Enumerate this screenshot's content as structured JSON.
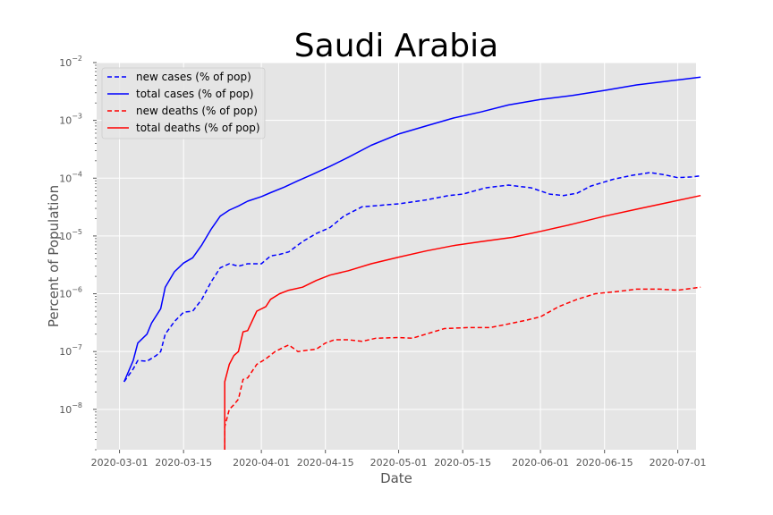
{
  "chart_data": {
    "type": "line",
    "title": "Saudi Arabia",
    "xlabel": "Date",
    "ylabel": "Percent of Population",
    "y_scale": "log",
    "ylim": [
      2e-09,
      0.01
    ],
    "xlim": [
      "2020-02-25",
      "2020-07-05"
    ],
    "grid": true,
    "legend_position": "top-left",
    "x_ticks": [
      "2020-03-01",
      "2020-03-15",
      "2020-04-01",
      "2020-04-15",
      "2020-05-01",
      "2020-05-15",
      "2020-06-01",
      "2020-06-15",
      "2020-07-01"
    ],
    "y_ticks": [
      {
        "value": 1e-08,
        "label": "10",
        "exp": "−8"
      },
      {
        "value": 1e-07,
        "label": "10",
        "exp": "−7"
      },
      {
        "value": 1e-06,
        "label": "10",
        "exp": "−6"
      },
      {
        "value": 1e-05,
        "label": "10",
        "exp": "−5"
      },
      {
        "value": 0.0001,
        "label": "10",
        "exp": "−4"
      },
      {
        "value": 0.001,
        "label": "10",
        "exp": "−3"
      },
      {
        "value": 0.01,
        "label": "10",
        "exp": "−2"
      }
    ],
    "series": [
      {
        "name": "new cases (% of pop)",
        "color": "#0000ff",
        "dash": "dashed",
        "points": [
          [
            "2020-03-02",
            3e-08
          ],
          [
            "2020-03-04",
            5e-08
          ],
          [
            "2020-03-05",
            7e-08
          ],
          [
            "2020-03-07",
            6.8e-08
          ],
          [
            "2020-03-09",
            8.5e-08
          ],
          [
            "2020-03-10",
            1e-07
          ],
          [
            "2020-03-11",
            2e-07
          ],
          [
            "2020-03-13",
            3.3e-07
          ],
          [
            "2020-03-15",
            4.8e-07
          ],
          [
            "2020-03-17",
            5e-07
          ],
          [
            "2020-03-19",
            8e-07
          ],
          [
            "2020-03-21",
            1.6e-06
          ],
          [
            "2020-03-23",
            2.8e-06
          ],
          [
            "2020-03-25",
            3.3e-06
          ],
          [
            "2020-03-27",
            3e-06
          ],
          [
            "2020-03-29",
            3.3e-06
          ],
          [
            "2020-04-01",
            3.3e-06
          ],
          [
            "2020-04-03",
            4.5e-06
          ],
          [
            "2020-04-05",
            4.8e-06
          ],
          [
            "2020-04-07",
            5.3e-06
          ],
          [
            "2020-04-10",
            8e-06
          ],
          [
            "2020-04-13",
            1.1e-05
          ],
          [
            "2020-04-16",
            1.4e-05
          ],
          [
            "2020-04-19",
            2.2e-05
          ],
          [
            "2020-04-23",
            3.2e-05
          ],
          [
            "2020-05-01",
            3.6e-05
          ],
          [
            "2020-05-07",
            4.2e-05
          ],
          [
            "2020-05-12",
            5e-05
          ],
          [
            "2020-05-15",
            5.3e-05
          ],
          [
            "2020-05-20",
            6.8e-05
          ],
          [
            "2020-05-25",
            7.6e-05
          ],
          [
            "2020-05-30",
            6.8e-05
          ],
          [
            "2020-06-03",
            5.3e-05
          ],
          [
            "2020-06-06",
            5e-05
          ],
          [
            "2020-06-09",
            5.5e-05
          ],
          [
            "2020-06-12",
            7.3e-05
          ],
          [
            "2020-06-17",
            9.6e-05
          ],
          [
            "2020-06-21",
            0.000112
          ],
          [
            "2020-06-25",
            0.000125
          ],
          [
            "2020-06-28",
            0.000115
          ],
          [
            "2020-07-01",
            0.000102
          ],
          [
            "2020-07-04",
            0.000105
          ],
          [
            "2020-07-06",
            0.00011
          ]
        ]
      },
      {
        "name": "total cases (% of pop)",
        "color": "#0000ff",
        "dash": "solid",
        "points": [
          [
            "2020-03-02",
            3e-08
          ],
          [
            "2020-03-04",
            7e-08
          ],
          [
            "2020-03-05",
            1.4e-07
          ],
          [
            "2020-03-07",
            2e-07
          ],
          [
            "2020-03-08",
            3.1e-07
          ],
          [
            "2020-03-10",
            5.5e-07
          ],
          [
            "2020-03-11",
            1.3e-06
          ],
          [
            "2020-03-13",
            2.4e-06
          ],
          [
            "2020-03-15",
            3.4e-06
          ],
          [
            "2020-03-17",
            4.2e-06
          ],
          [
            "2020-03-19",
            7e-06
          ],
          [
            "2020-03-21",
            1.3e-05
          ],
          [
            "2020-03-23",
            2.2e-05
          ],
          [
            "2020-03-25",
            2.8e-05
          ],
          [
            "2020-03-27",
            3.3e-05
          ],
          [
            "2020-03-29",
            4e-05
          ],
          [
            "2020-04-01",
            4.8e-05
          ],
          [
            "2020-04-03",
            5.6e-05
          ],
          [
            "2020-04-06",
            7e-05
          ],
          [
            "2020-04-09",
            9e-05
          ],
          [
            "2020-04-12",
            0.000115
          ],
          [
            "2020-04-16",
            0.00016
          ],
          [
            "2020-04-20",
            0.00023
          ],
          [
            "2020-04-25",
            0.00037
          ],
          [
            "2020-05-01",
            0.00058
          ],
          [
            "2020-05-07",
            0.0008
          ],
          [
            "2020-05-13",
            0.0011
          ],
          [
            "2020-05-19",
            0.0014
          ],
          [
            "2020-05-25",
            0.00185
          ],
          [
            "2020-06-01",
            0.0023
          ],
          [
            "2020-06-08",
            0.0027
          ],
          [
            "2020-06-15",
            0.0033
          ],
          [
            "2020-06-22",
            0.0041
          ],
          [
            "2020-06-29",
            0.0048
          ],
          [
            "2020-07-06",
            0.0056
          ]
        ]
      },
      {
        "name": "new deaths (% of pop)",
        "color": "#ff0000",
        "dash": "dashed",
        "points": [
          [
            "2020-03-24",
            2e-09
          ],
          [
            "2020-03-24",
            5e-09
          ],
          [
            "2020-03-25",
            1e-08
          ],
          [
            "2020-03-26",
            1.2e-08
          ],
          [
            "2020-03-27",
            1.5e-08
          ],
          [
            "2020-03-28",
            3.3e-08
          ],
          [
            "2020-03-29",
            3.5e-08
          ],
          [
            "2020-03-31",
            6e-08
          ],
          [
            "2020-04-02",
            7.5e-08
          ],
          [
            "2020-04-04",
            1e-07
          ],
          [
            "2020-04-06",
            1.2e-07
          ],
          [
            "2020-04-07",
            1.3e-07
          ],
          [
            "2020-04-09",
            1e-07
          ],
          [
            "2020-04-11",
            1.05e-07
          ],
          [
            "2020-04-13",
            1.1e-07
          ],
          [
            "2020-04-15",
            1.4e-07
          ],
          [
            "2020-04-17",
            1.6e-07
          ],
          [
            "2020-04-20",
            1.6e-07
          ],
          [
            "2020-04-23",
            1.5e-07
          ],
          [
            "2020-04-26",
            1.7e-07
          ],
          [
            "2020-05-01",
            1.75e-07
          ],
          [
            "2020-05-04",
            1.7e-07
          ],
          [
            "2020-05-07",
            2e-07
          ],
          [
            "2020-05-11",
            2.5e-07
          ],
          [
            "2020-05-16",
            2.6e-07
          ],
          [
            "2020-05-21",
            2.6e-07
          ],
          [
            "2020-05-25",
            3e-07
          ],
          [
            "2020-05-29",
            3.5e-07
          ],
          [
            "2020-06-01",
            4e-07
          ],
          [
            "2020-06-05",
            6e-07
          ],
          [
            "2020-06-09",
            8e-07
          ],
          [
            "2020-06-13",
            1e-06
          ],
          [
            "2020-06-18",
            1.1e-06
          ],
          [
            "2020-06-22",
            1.2e-06
          ],
          [
            "2020-06-27",
            1.2e-06
          ],
          [
            "2020-07-01",
            1.15e-06
          ],
          [
            "2020-07-06",
            1.3e-06
          ]
        ]
      },
      {
        "name": "total deaths (% of pop)",
        "color": "#ff0000",
        "dash": "solid",
        "points": [
          [
            "2020-03-24",
            2e-09
          ],
          [
            "2020-03-24",
            3e-08
          ],
          [
            "2020-03-25",
            6e-08
          ],
          [
            "2020-03-26",
            8.5e-08
          ],
          [
            "2020-03-27",
            1e-07
          ],
          [
            "2020-03-28",
            2.2e-07
          ],
          [
            "2020-03-29",
            2.3e-07
          ],
          [
            "2020-03-31",
            5e-07
          ],
          [
            "2020-04-02",
            6e-07
          ],
          [
            "2020-04-03",
            8e-07
          ],
          [
            "2020-04-05",
            1e-06
          ],
          [
            "2020-04-07",
            1.15e-06
          ],
          [
            "2020-04-10",
            1.3e-06
          ],
          [
            "2020-04-13",
            1.7e-06
          ],
          [
            "2020-04-16",
            2.1e-06
          ],
          [
            "2020-04-20",
            2.5e-06
          ],
          [
            "2020-04-25",
            3.3e-06
          ],
          [
            "2020-05-01",
            4.3e-06
          ],
          [
            "2020-05-07",
            5.5e-06
          ],
          [
            "2020-05-13",
            6.8e-06
          ],
          [
            "2020-05-19",
            8e-06
          ],
          [
            "2020-05-26",
            9.5e-06
          ],
          [
            "2020-06-01",
            1.2e-05
          ],
          [
            "2020-06-08",
            1.6e-05
          ],
          [
            "2020-06-15",
            2.2e-05
          ],
          [
            "2020-06-22",
            2.9e-05
          ],
          [
            "2020-06-29",
            3.8e-05
          ],
          [
            "2020-07-06",
            5e-05
          ]
        ]
      }
    ]
  }
}
